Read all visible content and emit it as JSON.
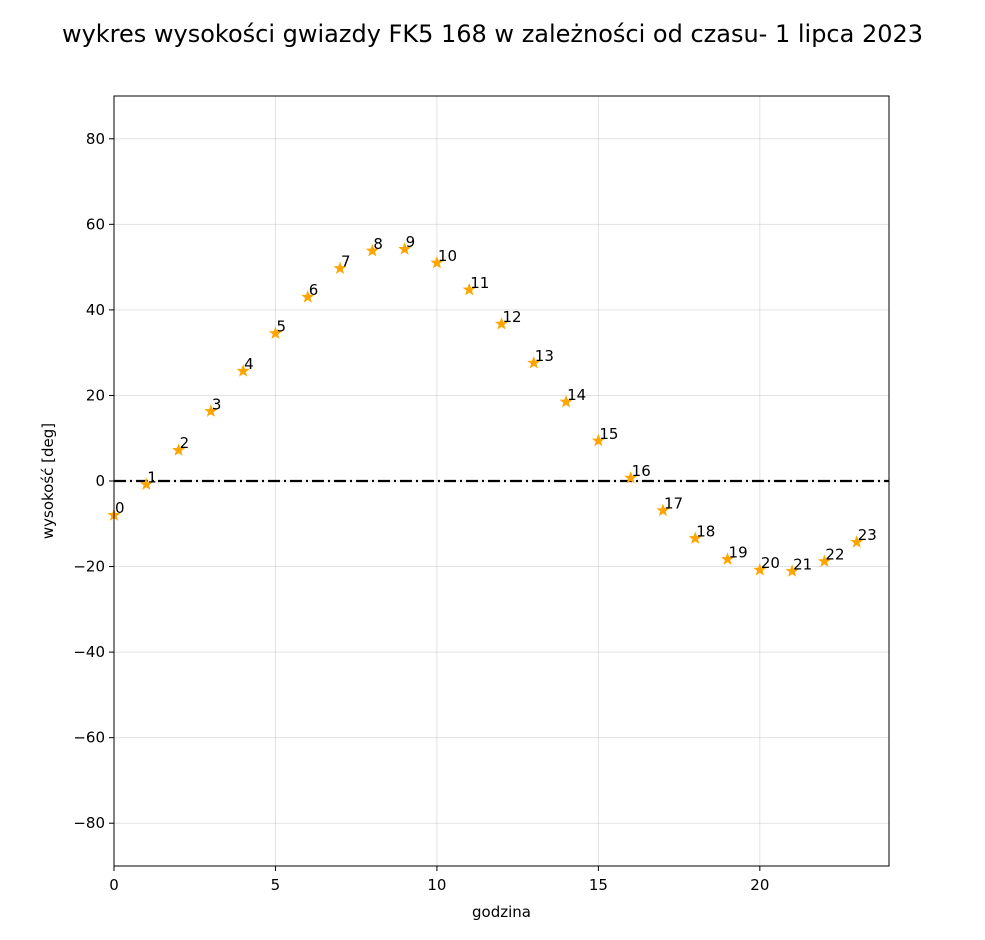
{
  "chart_data": {
    "type": "scatter",
    "title": "wykres wysokości gwiazdy FK5 168 w zależności od czasu- 1 lipca 2023",
    "xlabel": "godzina",
    "ylabel": "wysokość [deg]",
    "xlim": [
      0,
      24
    ],
    "ylim": [
      -90,
      90
    ],
    "xticks": [
      0,
      5,
      10,
      15,
      20
    ],
    "yticks": [
      -80,
      -60,
      -40,
      -20,
      0,
      20,
      40,
      60,
      80
    ],
    "grid": true,
    "marker": "star",
    "marker_color": "#ffa500",
    "reference_line": {
      "y": 0,
      "style": "dash-dot",
      "color": "#000000"
    },
    "points": [
      {
        "x": 0,
        "y": -8.0,
        "label": "0"
      },
      {
        "x": 1,
        "y": -0.8,
        "label": "1"
      },
      {
        "x": 2,
        "y": 7.2,
        "label": "2"
      },
      {
        "x": 3,
        "y": 16.3,
        "label": "3"
      },
      {
        "x": 4,
        "y": 25.7,
        "label": "4"
      },
      {
        "x": 5,
        "y": 34.5,
        "label": "5"
      },
      {
        "x": 6,
        "y": 43.0,
        "label": "6"
      },
      {
        "x": 7,
        "y": 49.7,
        "label": "7"
      },
      {
        "x": 8,
        "y": 53.8,
        "label": "8"
      },
      {
        "x": 9,
        "y": 54.2,
        "label": "9"
      },
      {
        "x": 10,
        "y": 51.0,
        "label": "10"
      },
      {
        "x": 11,
        "y": 44.7,
        "label": "11"
      },
      {
        "x": 12,
        "y": 36.7,
        "label": "12"
      },
      {
        "x": 13,
        "y": 27.6,
        "label": "13"
      },
      {
        "x": 14,
        "y": 18.5,
        "label": "14"
      },
      {
        "x": 15,
        "y": 9.4,
        "label": "15"
      },
      {
        "x": 16,
        "y": 0.7,
        "label": "16"
      },
      {
        "x": 17,
        "y": -6.9,
        "label": "17"
      },
      {
        "x": 18,
        "y": -13.4,
        "label": "18"
      },
      {
        "x": 19,
        "y": -18.3,
        "label": "19"
      },
      {
        "x": 20,
        "y": -20.8,
        "label": "20"
      },
      {
        "x": 21,
        "y": -21.1,
        "label": "21"
      },
      {
        "x": 22,
        "y": -18.8,
        "label": "22"
      },
      {
        "x": 23,
        "y": -14.3,
        "label": "23"
      }
    ]
  }
}
